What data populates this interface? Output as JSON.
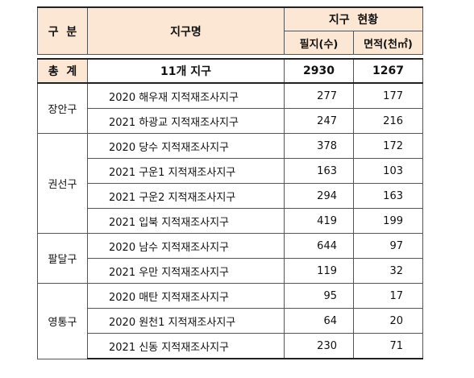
{
  "header": {
    "category": "구  분",
    "district_name": "지구명",
    "status": "지구  현황",
    "parcels": "필지(수)",
    "area": "면적(천㎡)"
  },
  "total": {
    "label": "총  계",
    "name": "11개 지구",
    "parcels": "2930",
    "area": "1267"
  },
  "groups": [
    {
      "region": "장안구",
      "rows": [
        {
          "name": "2020 해우재 지적재조사지구",
          "parcels": "277",
          "area": "177"
        },
        {
          "name": "2021 하광교 지적재조사지구",
          "parcels": "247",
          "area": "216"
        }
      ]
    },
    {
      "region": "권선구",
      "rows": [
        {
          "name": "2020 당수 지적재조사지구",
          "parcels": "378",
          "area": "172"
        },
        {
          "name": "2021 구운1 지적재조사지구",
          "parcels": "163",
          "area": "103"
        },
        {
          "name": "2021 구운2 지적재조사지구",
          "parcels": "294",
          "area": "163"
        },
        {
          "name": "2021 입북 지적재조사지구",
          "parcels": "419",
          "area": "199"
        }
      ]
    },
    {
      "region": "팔달구",
      "rows": [
        {
          "name": "2020 남수 지적재조사지구",
          "parcels": "644",
          "area": "97"
        },
        {
          "name": "2021 우만 지적재조사지구",
          "parcels": "119",
          "area": "32"
        }
      ]
    },
    {
      "region": "영통구",
      "rows": [
        {
          "name": "2020 매탄 지적재조사지구",
          "parcels": "95",
          "area": "17"
        },
        {
          "name": "2020 원천1 지적재조사지구",
          "parcels": "64",
          "area": "20"
        },
        {
          "name": "2021 신동 지적재조사지구",
          "parcels": "230",
          "area": "71"
        }
      ]
    }
  ]
}
